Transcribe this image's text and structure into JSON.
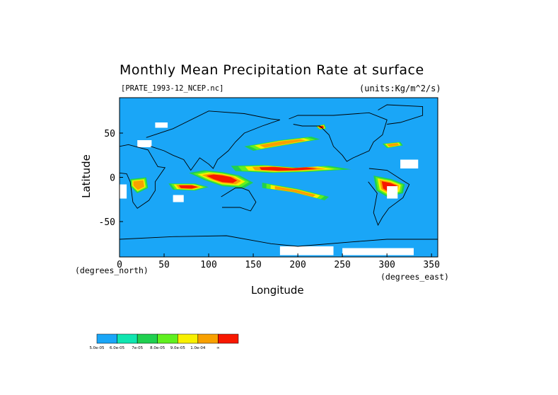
{
  "chart_data": {
    "type": "heatmap",
    "title": "Monthly Mean Precipitation Rate at surface",
    "source_label": "[PRATE_1993-12_NCEP.nc]",
    "units_label": "(units:Kg/m^2/s)",
    "xlabel": "Longitude",
    "ylabel": "Latitude",
    "x_note": "(degrees_east)",
    "y_note": "(degrees_north)",
    "xlim": [
      0,
      357
    ],
    "ylim": [
      -90,
      90
    ],
    "x_ticks": [
      0,
      50,
      100,
      150,
      200,
      250,
      300,
      350
    ],
    "y_ticks": [
      -50,
      0,
      50
    ],
    "colorbar": {
      "colors": [
        "#1aa6f7",
        "#10e5b0",
        "#20d050",
        "#60f020",
        "#f8f000",
        "#f8a000",
        "#f81800"
      ],
      "labels": [
        "5.0e-05",
        "6.0e-05",
        "7e-05",
        "8.0e-05",
        "9.0e-05",
        "1.0e-04",
        "∞"
      ]
    },
    "regions": [
      {
        "name": "itcz-main",
        "level": 6,
        "points": [
          [
            125,
            13
          ],
          [
            160,
            14
          ],
          [
            200,
            11
          ],
          [
            235,
            13
          ],
          [
            260,
            9
          ],
          [
            210,
            6
          ],
          [
            170,
            5
          ],
          [
            130,
            7
          ]
        ]
      },
      {
        "name": "spcz",
        "level": 5,
        "points": [
          [
            160,
            -6
          ],
          [
            200,
            -13
          ],
          [
            235,
            -22
          ],
          [
            230,
            -26
          ],
          [
            195,
            -17
          ],
          [
            160,
            -12
          ]
        ]
      },
      {
        "name": "maritime-continent",
        "level": 6,
        "points": [
          [
            78,
            5
          ],
          [
            95,
            8
          ],
          [
            115,
            6
          ],
          [
            135,
            2
          ],
          [
            150,
            -6
          ],
          [
            140,
            -12
          ],
          [
            115,
            -10
          ],
          [
            95,
            -3
          ]
        ]
      },
      {
        "name": "indian-ocean-south",
        "level": 6,
        "points": [
          [
            55,
            -7
          ],
          [
            85,
            -7
          ],
          [
            100,
            -11
          ],
          [
            85,
            -15
          ],
          [
            60,
            -14
          ]
        ]
      },
      {
        "name": "north-pacific-storm",
        "level": 5,
        "points": [
          [
            140,
            35
          ],
          [
            180,
            42
          ],
          [
            215,
            46
          ],
          [
            225,
            43
          ],
          [
            190,
            37
          ],
          [
            150,
            30
          ]
        ]
      },
      {
        "name": "north-atlantic-storm",
        "level": 5,
        "points": [
          [
            295,
            38
          ],
          [
            315,
            40
          ],
          [
            318,
            36
          ],
          [
            300,
            33
          ]
        ]
      },
      {
        "name": "amazon",
        "level": 6,
        "points": [
          [
            285,
            2
          ],
          [
            305,
            -2
          ],
          [
            320,
            -8
          ],
          [
            318,
            -18
          ],
          [
            300,
            -22
          ],
          [
            288,
            -15
          ]
        ]
      },
      {
        "name": "central-africa",
        "level": 5,
        "points": [
          [
            12,
            -2
          ],
          [
            30,
            0
          ],
          [
            32,
            -12
          ],
          [
            20,
            -18
          ],
          [
            12,
            -10
          ]
        ]
      },
      {
        "name": "gulf-alaska",
        "level": 6,
        "points": [
          [
            220,
            58
          ],
          [
            230,
            60
          ],
          [
            232,
            55
          ],
          [
            224,
            54
          ]
        ]
      }
    ]
  }
}
